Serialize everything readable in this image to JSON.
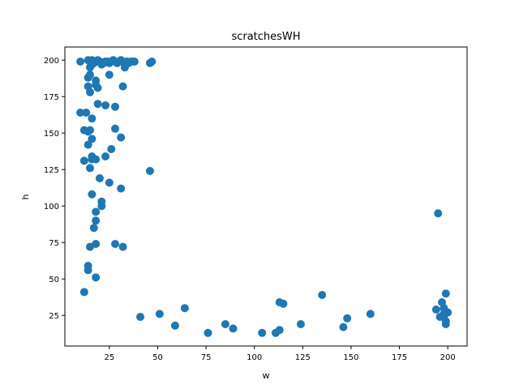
{
  "chart_data": {
    "type": "scatter",
    "title": "scratchesWH",
    "xlabel": "w",
    "ylabel": "h",
    "xlim": [
      2,
      210
    ],
    "ylim": [
      4,
      209
    ],
    "xticks": [
      25,
      50,
      75,
      100,
      125,
      150,
      175,
      200
    ],
    "yticks": [
      25,
      50,
      75,
      100,
      125,
      150,
      175,
      200
    ],
    "grid": false,
    "point_color": "#1f77b4",
    "points": [
      [
        10,
        199
      ],
      [
        14,
        200
      ],
      [
        15,
        199
      ],
      [
        16,
        200
      ],
      [
        17,
        198
      ],
      [
        18,
        199
      ],
      [
        19,
        200
      ],
      [
        20,
        199
      ],
      [
        21,
        197
      ],
      [
        22,
        198
      ],
      [
        23,
        199
      ],
      [
        24,
        199
      ],
      [
        25,
        198
      ],
      [
        26,
        199
      ],
      [
        27,
        200
      ],
      [
        28,
        199
      ],
      [
        29,
        198
      ],
      [
        30,
        199
      ],
      [
        31,
        200
      ],
      [
        32,
        199
      ],
      [
        33,
        197
      ],
      [
        34,
        199
      ],
      [
        35,
        198
      ],
      [
        36,
        199
      ],
      [
        37,
        199
      ],
      [
        38,
        199
      ],
      [
        46,
        198
      ],
      [
        47,
        199
      ],
      [
        15,
        195
      ],
      [
        16,
        197
      ],
      [
        17,
        198
      ],
      [
        25,
        190
      ],
      [
        14,
        188
      ],
      [
        15,
        190
      ],
      [
        18,
        186
      ],
      [
        18,
        183
      ],
      [
        19,
        181
      ],
      [
        14,
        182
      ],
      [
        15,
        178
      ],
      [
        32,
        182
      ],
      [
        33,
        195
      ],
      [
        19,
        170
      ],
      [
        23,
        169
      ],
      [
        28,
        168
      ],
      [
        10,
        164
      ],
      [
        13,
        164
      ],
      [
        16,
        160
      ],
      [
        12,
        152
      ],
      [
        14,
        151
      ],
      [
        15,
        152
      ],
      [
        28,
        153
      ],
      [
        31,
        147
      ],
      [
        16,
        146
      ],
      [
        14,
        142
      ],
      [
        26,
        139
      ],
      [
        16,
        134
      ],
      [
        16,
        132
      ],
      [
        18,
        132
      ],
      [
        23,
        134
      ],
      [
        12,
        131
      ],
      [
        15,
        126
      ],
      [
        20,
        119
      ],
      [
        25,
        116
      ],
      [
        31,
        112
      ],
      [
        16,
        108
      ],
      [
        46,
        124
      ],
      [
        21,
        103
      ],
      [
        21,
        100
      ],
      [
        18,
        96
      ],
      [
        18,
        90
      ],
      [
        17,
        85
      ],
      [
        18,
        74
      ],
      [
        15,
        72
      ],
      [
        28,
        74
      ],
      [
        32,
        72
      ],
      [
        14,
        59
      ],
      [
        14,
        56
      ],
      [
        18,
        51
      ],
      [
        12,
        41
      ],
      [
        41,
        24
      ],
      [
        51,
        26
      ],
      [
        59,
        18
      ],
      [
        64,
        30
      ],
      [
        76,
        13
      ],
      [
        85,
        19
      ],
      [
        89,
        16
      ],
      [
        104,
        13
      ],
      [
        111,
        13
      ],
      [
        113,
        15
      ],
      [
        113,
        34
      ],
      [
        115,
        33
      ],
      [
        124,
        19
      ],
      [
        135,
        39
      ],
      [
        146,
        17
      ],
      [
        148,
        23
      ],
      [
        160,
        26
      ],
      [
        195,
        95
      ],
      [
        194,
        29
      ],
      [
        196,
        24
      ],
      [
        197,
        34
      ],
      [
        198,
        30
      ],
      [
        198,
        26
      ],
      [
        199,
        40
      ],
      [
        199,
        21
      ],
      [
        199,
        19
      ],
      [
        200,
        27
      ],
      [
        198,
        24
      ]
    ]
  }
}
